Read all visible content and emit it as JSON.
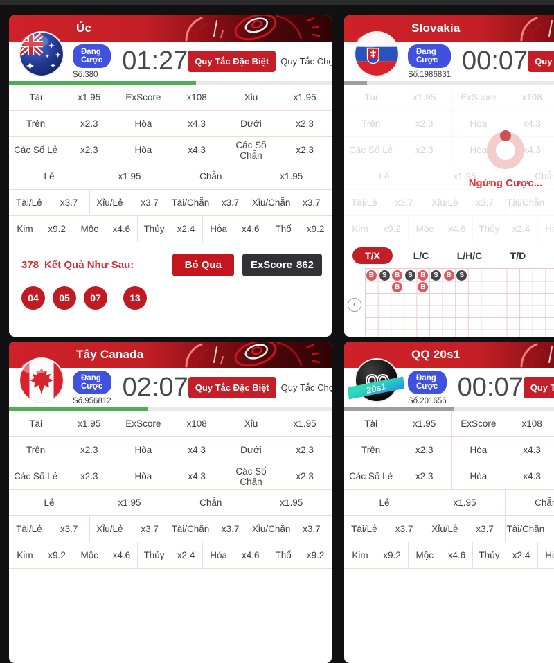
{
  "shared": {
    "status_label": "Đang Cược",
    "btn_special": "Quy Tắc Đặc Biệt",
    "btn_filter": "Quy Tắc Chọn Lọc",
    "odds_rows": [
      [
        {
          "label": "Tài",
          "value": "x1.95"
        },
        {
          "label": "ExScore",
          "value": "x108"
        },
        {
          "label": "Xỉu",
          "value": "x1.95"
        }
      ],
      [
        {
          "label": "Trên",
          "value": "x2.3"
        },
        {
          "label": "Hòa",
          "value": "x4.3"
        },
        {
          "label": "Dưới",
          "value": "x2.3"
        }
      ],
      [
        {
          "label": "Các Số Lẻ",
          "value": "x2.3"
        },
        {
          "label": "Hòa",
          "value": "x4.3"
        },
        {
          "label": "Các Số Chẵn",
          "value": "x2.3"
        }
      ],
      [
        {
          "label": "Lẻ",
          "value": "x1.95"
        },
        {
          "label": "Chẵn",
          "value": "x1.95"
        }
      ],
      [
        {
          "label": "Tài/Lẻ",
          "value": "x3.7"
        },
        {
          "label": "Xỉu/Lẻ",
          "value": "x3.7"
        },
        {
          "label": "Tài/Chẵn",
          "value": "x3.7"
        },
        {
          "label": "Xỉu/Chẵn",
          "value": "x3.7"
        }
      ],
      [
        {
          "label": "Kim",
          "value": "x9.2"
        },
        {
          "label": "Mộc",
          "value": "x4.6"
        },
        {
          "label": "Thủy",
          "value": "x2.4"
        },
        {
          "label": "Hỏa",
          "value": "x4.6"
        },
        {
          "label": "Thổ",
          "value": "x9.2"
        }
      ]
    ]
  },
  "icons": {
    "prev": "‹"
  },
  "colors": {
    "banner_red": "#ce2128",
    "button_red": "#c41e28",
    "badge_blue": "#4050df",
    "progress_green": "#4cb050",
    "progress_gray": "#9e9e9e",
    "marker_big": "#e0575e",
    "marker_small": "#45454b"
  },
  "cards": [
    {
      "title": "Úc",
      "flag": "australia",
      "round": "Số.380",
      "timer": "01:27",
      "progress_pct": 58,
      "progress_color": "#4cb050",
      "result": {
        "round": "378",
        "label": "Kết Quả Như Sau:",
        "skip_label": "Bỏ Qua",
        "exscore_label": "ExScore",
        "exscore_value": "862",
        "balls": [
          "04",
          "05",
          "07",
          "13"
        ]
      }
    },
    {
      "title": "Slovakia",
      "flag": "slovakia",
      "round": "Số.1986831",
      "timer": "00:07",
      "progress_pct": 7,
      "progress_color": "#9e9e9e",
      "suspended_text": "Ngừng Cược...",
      "tabs": [
        {
          "label": "T/X",
          "active": true
        },
        {
          "label": "L/C",
          "active": false
        },
        {
          "label": "L/H/C",
          "active": false
        },
        {
          "label": "T/D",
          "active": false
        }
      ],
      "road_columns": [
        [
          "B"
        ],
        [
          "S"
        ],
        [
          "B",
          "B"
        ],
        [
          "S"
        ],
        [
          "B",
          "B"
        ],
        [
          "S"
        ],
        [
          "B"
        ],
        [
          "S"
        ]
      ]
    },
    {
      "title": "Tây Canada",
      "flag": "canada",
      "round": "Số.956812",
      "timer": "02:07",
      "progress_pct": 43,
      "progress_color": "#4cb050"
    },
    {
      "title": "QQ 20s1",
      "flag": "qq",
      "round": "Số.201656",
      "timer": "00:07",
      "progress_pct": 34,
      "progress_color": "#9e9e9e",
      "logo": {
        "text": "QQ",
        "ribbon": "20s1"
      }
    }
  ]
}
